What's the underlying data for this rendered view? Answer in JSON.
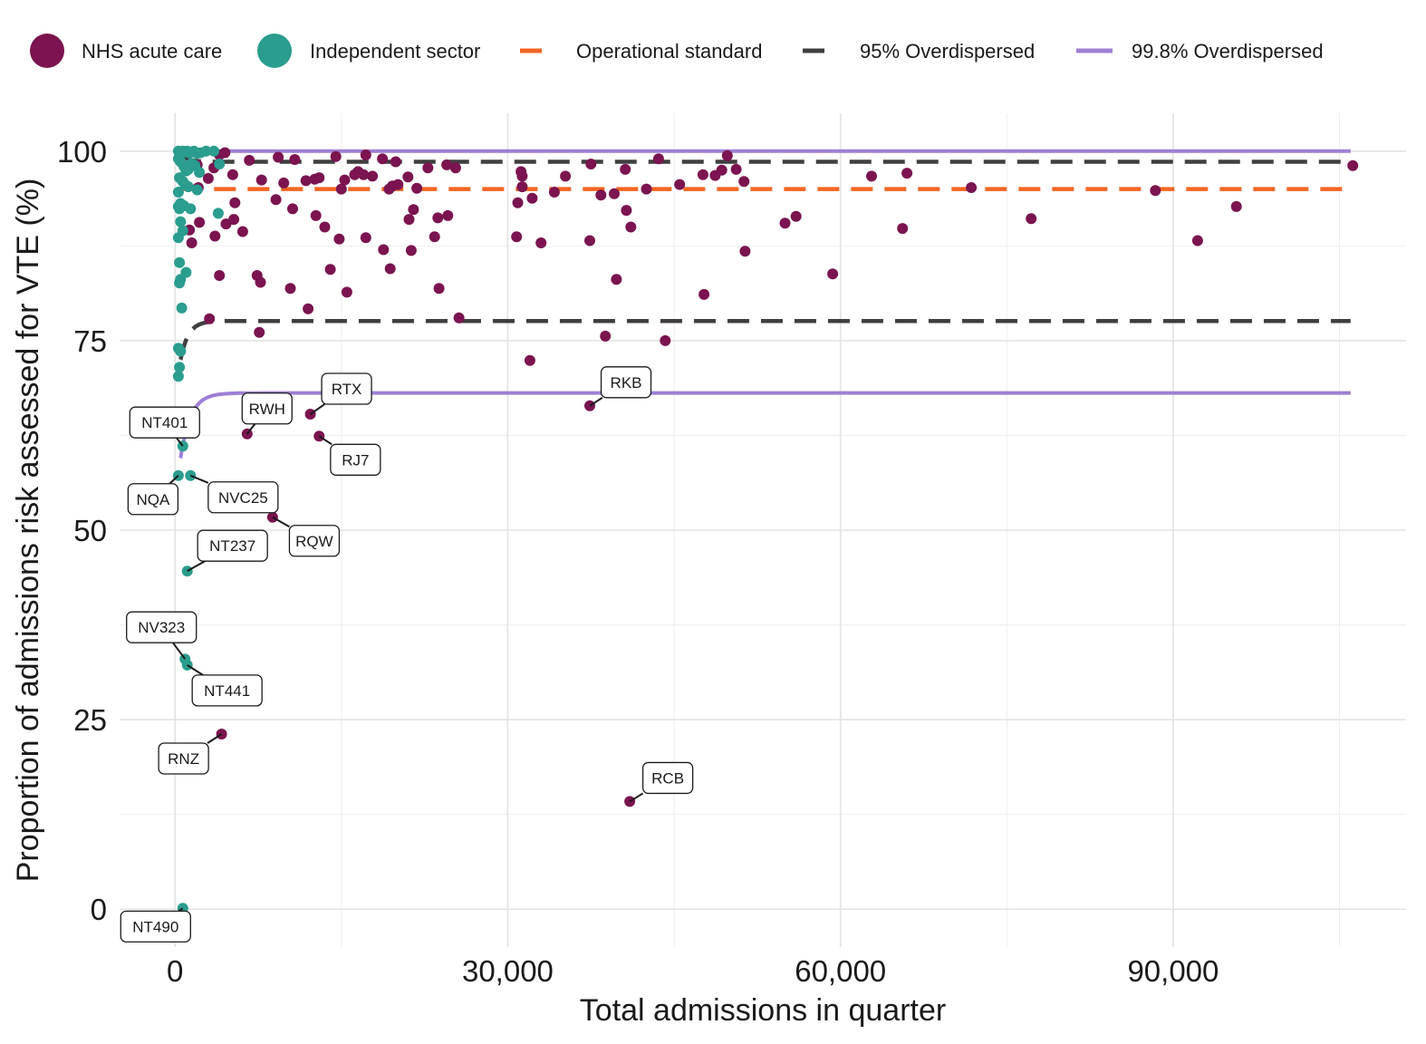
{
  "chart_data": {
    "type": "scatter",
    "title": "",
    "xlabel": "Total admissions in quarter",
    "ylabel": "Proportion of admissions risk assessed for VTE (%)",
    "xlim": [
      -5000,
      111000
    ],
    "ylim": [
      -5,
      105
    ],
    "x_ticks": [
      0,
      30000,
      60000,
      90000
    ],
    "x_tick_labels": [
      "0",
      "30,000",
      "60,000",
      "90,000"
    ],
    "y_ticks": [
      0,
      25,
      50,
      75,
      100
    ],
    "y_tick_labels": [
      "0",
      "25",
      "50",
      "75",
      "100"
    ],
    "grid": true,
    "legend_position": "top",
    "legend": [
      {
        "label": "NHS acute care",
        "kind": "point",
        "color": "#7b1450"
      },
      {
        "label": "Independent sector",
        "kind": "point",
        "color": "#2a9d8f"
      },
      {
        "label": "Operational standard",
        "kind": "line",
        "color": "#f26522",
        "dash": "dashed"
      },
      {
        "label": "95% Overdispersed",
        "kind": "line",
        "color": "#3f3f3f",
        "dash": "dashed"
      },
      {
        "label": "99.8% Overdispersed",
        "kind": "line",
        "color": "#9e7fd4",
        "dash": "solid"
      }
    ],
    "reference_lines": {
      "operational_standard": 95,
      "overdispersed_95": {
        "upper": 98.6,
        "lower": 77.6
      },
      "overdispersed_998": {
        "upper": 100,
        "lower": 68.1
      },
      "x_range": [
        500,
        106000
      ]
    },
    "series": [
      {
        "name": "NHS acute care",
        "color": "#7b1450",
        "points": [
          [
            6500,
            62.7
          ],
          [
            12200,
            65.3
          ],
          [
            13000,
            62.4
          ],
          [
            8800,
            51.7
          ],
          [
            4200,
            23.1
          ],
          [
            37400,
            66.4
          ],
          [
            41000,
            14.2
          ],
          [
            106200,
            98.1
          ],
          [
            2000,
            98.2
          ],
          [
            3500,
            97.8
          ],
          [
            4000,
            99.5
          ],
          [
            4500,
            99.8
          ],
          [
            5200,
            96.9
          ],
          [
            6700,
            98.8
          ],
          [
            9300,
            99.2
          ],
          [
            10800,
            98.9
          ],
          [
            14500,
            99.3
          ],
          [
            16500,
            97.3
          ],
          [
            17200,
            99.5
          ],
          [
            18700,
            99.0
          ],
          [
            19900,
            98.6
          ],
          [
            22800,
            97.8
          ],
          [
            24500,
            98.2
          ],
          [
            25300,
            97.8
          ],
          [
            7800,
            96.2
          ],
          [
            9800,
            95.8
          ],
          [
            11800,
            96.1
          ],
          [
            12600,
            96.3
          ],
          [
            13000,
            96.5
          ],
          [
            15000,
            95.0
          ],
          [
            15300,
            96.2
          ],
          [
            16200,
            96.9
          ],
          [
            17000,
            96.9
          ],
          [
            17800,
            96.7
          ],
          [
            19300,
            95.0
          ],
          [
            20100,
            95.6
          ],
          [
            21000,
            96.6
          ],
          [
            21800,
            95.1
          ],
          [
            30900,
            93.2
          ],
          [
            31200,
            97.3
          ],
          [
            31300,
            96.7
          ],
          [
            31300,
            95.3
          ],
          [
            32200,
            93.8
          ],
          [
            34200,
            94.6
          ],
          [
            35200,
            96.7
          ],
          [
            37500,
            98.3
          ],
          [
            38400,
            94.2
          ],
          [
            39600,
            94.4
          ],
          [
            40600,
            97.6
          ],
          [
            42500,
            95.0
          ],
          [
            43600,
            99.0
          ],
          [
            45500,
            95.6
          ],
          [
            47600,
            96.9
          ],
          [
            48700,
            96.8
          ],
          [
            49300,
            97.5
          ],
          [
            49800,
            99.4
          ],
          [
            50600,
            97.6
          ],
          [
            51300,
            96.0
          ],
          [
            62800,
            96.7
          ],
          [
            66000,
            97.1
          ],
          [
            71800,
            95.2
          ],
          [
            88400,
            94.8
          ],
          [
            95700,
            92.7
          ],
          [
            40700,
            92.2
          ],
          [
            41100,
            90.0
          ],
          [
            55000,
            90.5
          ],
          [
            56000,
            91.4
          ],
          [
            65600,
            89.8
          ],
          [
            77200,
            91.1
          ],
          [
            92200,
            88.2
          ],
          [
            2200,
            90.6
          ],
          [
            4600,
            90.4
          ],
          [
            5300,
            91.0
          ],
          [
            6100,
            89.4
          ],
          [
            9100,
            93.6
          ],
          [
            10600,
            92.4
          ],
          [
            12700,
            91.5
          ],
          [
            13500,
            90.0
          ],
          [
            19600,
            95.4
          ],
          [
            21100,
            91.0
          ],
          [
            21500,
            92.3
          ],
          [
            23400,
            88.7
          ],
          [
            23700,
            91.2
          ],
          [
            24600,
            91.5
          ],
          [
            30800,
            88.7
          ],
          [
            33000,
            87.9
          ],
          [
            37400,
            88.2
          ],
          [
            1300,
            89.6
          ],
          [
            1500,
            87.9
          ],
          [
            3600,
            88.8
          ],
          [
            14800,
            88.4
          ],
          [
            17200,
            88.6
          ],
          [
            18800,
            87.0
          ],
          [
            21300,
            86.9
          ],
          [
            51400,
            86.8
          ],
          [
            4000,
            83.6
          ],
          [
            7400,
            83.6
          ],
          [
            7700,
            82.7
          ],
          [
            10400,
            81.9
          ],
          [
            12000,
            79.2
          ],
          [
            14000,
            84.4
          ],
          [
            15500,
            81.4
          ],
          [
            19400,
            84.5
          ],
          [
            23800,
            81.9
          ],
          [
            25600,
            78.0
          ],
          [
            39800,
            83.1
          ],
          [
            47700,
            81.1
          ],
          [
            59300,
            83.8
          ],
          [
            3100,
            77.9
          ],
          [
            7600,
            76.1
          ],
          [
            32000,
            72.4
          ],
          [
            38800,
            75.6
          ],
          [
            44200,
            75.0
          ],
          [
            5400,
            93.2
          ],
          [
            3000,
            96.4
          ],
          [
            2100,
            95.2
          ]
        ]
      },
      {
        "name": "Independent sector",
        "color": "#2a9d8f",
        "points": [
          [
            300,
            100
          ],
          [
            500,
            99.9
          ],
          [
            700,
            100
          ],
          [
            900,
            99.9
          ],
          [
            1100,
            100
          ],
          [
            1300,
            99.8
          ],
          [
            1500,
            99.9
          ],
          [
            1700,
            100
          ],
          [
            2000,
            99.7
          ],
          [
            2300,
            99.8
          ],
          [
            2800,
            100
          ],
          [
            3500,
            100
          ],
          [
            300,
            99.0
          ],
          [
            500,
            98.6
          ],
          [
            800,
            98.0
          ],
          [
            1000,
            97.4
          ],
          [
            1200,
            97.6
          ],
          [
            1500,
            98.4
          ],
          [
            1800,
            98.1
          ],
          [
            2200,
            97.2
          ],
          [
            400,
            96.5
          ],
          [
            700,
            96.0
          ],
          [
            900,
            95.6
          ],
          [
            1200,
            95.3
          ],
          [
            2000,
            94.9
          ],
          [
            300,
            94.6
          ],
          [
            500,
            93.1
          ],
          [
            800,
            92.8
          ],
          [
            1400,
            92.4
          ],
          [
            300,
            92.7
          ],
          [
            400,
            92.4
          ],
          [
            500,
            90.7
          ],
          [
            700,
            89.5
          ],
          [
            300,
            88.6
          ],
          [
            400,
            85.3
          ],
          [
            1000,
            84.0
          ],
          [
            500,
            83.1
          ],
          [
            400,
            82.6
          ],
          [
            600,
            79.3
          ],
          [
            3900,
            91.8
          ],
          [
            4000,
            98.3
          ],
          [
            300,
            74.0
          ],
          [
            500,
            73.6
          ],
          [
            400,
            71.5
          ],
          [
            300,
            70.3
          ],
          [
            700,
            61.1
          ],
          [
            300,
            57.2
          ],
          [
            1400,
            57.2
          ],
          [
            1100,
            44.6
          ],
          [
            900,
            33.0
          ],
          [
            1100,
            32.2
          ],
          [
            700,
            0.1
          ]
        ]
      }
    ],
    "point_labels": [
      {
        "text": "NT401",
        "point": [
          700,
          61.1
        ]
      },
      {
        "text": "NVC25",
        "point": [
          1400,
          57.2
        ]
      },
      {
        "text": "NQA",
        "point": [
          300,
          57.2
        ]
      },
      {
        "text": "NT237",
        "point": [
          1100,
          44.6
        ]
      },
      {
        "text": "NV323",
        "point": [
          900,
          33.0
        ]
      },
      {
        "text": "NT441",
        "point": [
          1100,
          32.2
        ]
      },
      {
        "text": "NT490",
        "point": [
          700,
          0.1
        ]
      },
      {
        "text": "RWH",
        "point": [
          6500,
          62.7
        ]
      },
      {
        "text": "RTX",
        "point": [
          12200,
          65.3
        ]
      },
      {
        "text": "RJ7",
        "point": [
          13000,
          62.4
        ]
      },
      {
        "text": "RQW",
        "point": [
          8800,
          51.7
        ]
      },
      {
        "text": "RNZ",
        "point": [
          4200,
          23.1
        ]
      },
      {
        "text": "RKB",
        "point": [
          37400,
          66.4
        ]
      },
      {
        "text": "RCB",
        "point": [
          41000,
          14.2
        ]
      }
    ]
  }
}
